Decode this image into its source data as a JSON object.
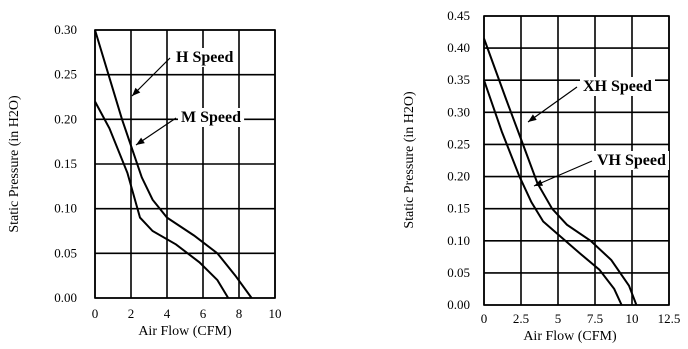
{
  "chart_data": [
    {
      "type": "line",
      "xlabel": "Air Flow (CFM)",
      "ylabel": "Static Pressure (in H2O)",
      "xlim": [
        0,
        10
      ],
      "ylim": [
        0,
        0.3
      ],
      "xticks": [
        "0",
        "2",
        "4",
        "6",
        "8",
        "10"
      ],
      "yticks": [
        "0.00",
        "0.05",
        "0.10",
        "0.15",
        "0.20",
        "0.25",
        "0.30"
      ],
      "grid": true,
      "series": [
        {
          "name": "H Speed",
          "x": [
            0,
            1.5,
            2.6,
            3.2,
            4.0,
            5.5,
            6.8,
            7.8,
            8.7
          ],
          "y": [
            0.3,
            0.2,
            0.135,
            0.11,
            0.09,
            0.07,
            0.05,
            0.025,
            0.0
          ]
        },
        {
          "name": "M Speed",
          "x": [
            0,
            0.8,
            1.8,
            2.5,
            3.2,
            4.5,
            5.8,
            6.8,
            7.4
          ],
          "y": [
            0.22,
            0.19,
            0.14,
            0.09,
            0.075,
            0.06,
            0.04,
            0.02,
            0.0
          ]
        }
      ]
    },
    {
      "type": "line",
      "xlabel": "Air Flow (CFM)",
      "ylabel": "Static Pressure (in H2O)",
      "xlim": [
        0,
        12.5
      ],
      "ylim": [
        0,
        0.45
      ],
      "xticks": [
        "0",
        "2.5",
        "5",
        "7.5",
        "10",
        "12.5"
      ],
      "yticks": [
        "0.00",
        "0.05",
        "0.10",
        "0.15",
        "0.20",
        "0.25",
        "0.30",
        "0.35",
        "0.40",
        "0.45"
      ],
      "grid": true,
      "series": [
        {
          "name": "XH Speed",
          "x": [
            0,
            1.5,
            2.8,
            3.6,
            4.6,
            5.6,
            7.2,
            8.6,
            9.8,
            10.3
          ],
          "y": [
            0.415,
            0.32,
            0.24,
            0.19,
            0.15,
            0.125,
            0.1,
            0.07,
            0.03,
            0.0
          ]
        },
        {
          "name": "VH Speed",
          "x": [
            0,
            1.2,
            2.4,
            3.2,
            4.0,
            5.0,
            6.5,
            7.8,
            8.8,
            9.3
          ],
          "y": [
            0.35,
            0.27,
            0.2,
            0.16,
            0.13,
            0.11,
            0.08,
            0.055,
            0.025,
            0.0
          ]
        }
      ]
    }
  ]
}
